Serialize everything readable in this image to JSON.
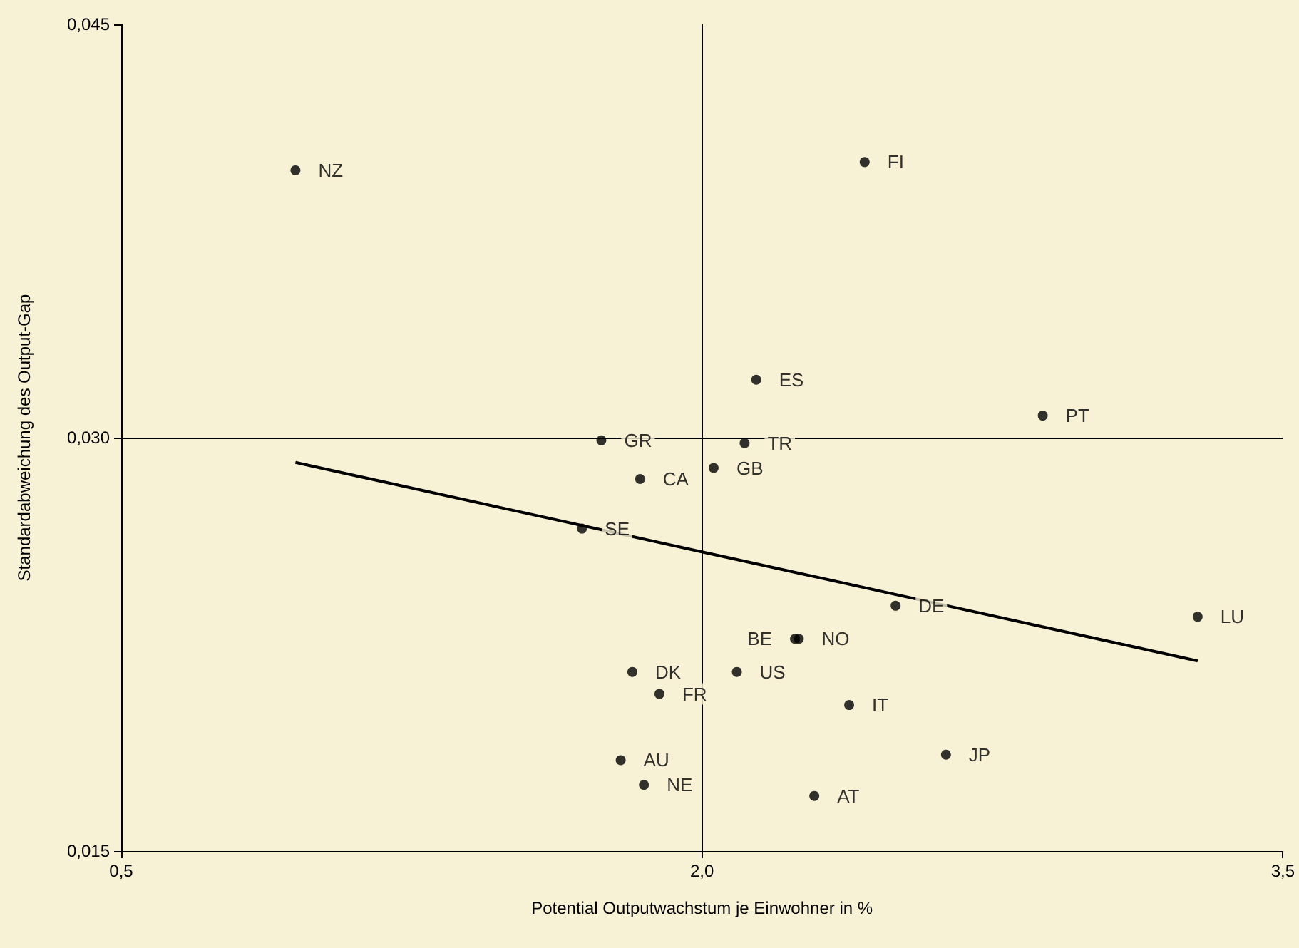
{
  "chart_data": {
    "type": "scatter",
    "xlabel": "Potential Outputwachstum je Einwohner in %",
    "ylabel": "Standardabweichung des Output-Gap",
    "xlim": [
      0.5,
      3.5
    ],
    "xticks": [
      {
        "value": 0.5,
        "label": "0,5"
      },
      {
        "value": 2.0,
        "label": "2,0"
      },
      {
        "value": 3.5,
        "label": "3,5"
      }
    ],
    "ylim": [
      0.015,
      0.045
    ],
    "yticks": [
      {
        "value": 0.015,
        "label": "0,015"
      },
      {
        "value": 0.03,
        "label": "0,030"
      },
      {
        "value": 0.045,
        "label": "0,045"
      }
    ],
    "grid": false,
    "marker": "circle",
    "series": [
      {
        "color": "#000000",
        "x": [
          0.95,
          2.42,
          2.14,
          2.88,
          1.74,
          2.11,
          2.03,
          1.84,
          1.69,
          2.5,
          3.28,
          2.24,
          2.25,
          1.82,
          2.09,
          1.89,
          2.38,
          2.63,
          1.79,
          1.85,
          2.29
        ],
        "values": [
          0.0397,
          0.04,
          0.0321,
          0.0308,
          0.0299,
          0.0298,
          0.0289,
          0.0285,
          0.0267,
          0.0239,
          0.0235,
          0.0227,
          0.0227,
          0.0215,
          0.0215,
          0.0207,
          0.0203,
          0.0185,
          0.0183,
          0.0174,
          0.017
        ]
      },
      {
        "type": "line",
        "color": "#000000",
        "marker": "none",
        "x": [
          0.95,
          3.28
        ],
        "values": [
          0.0291,
          0.0219
        ]
      }
    ],
    "ref_lines": [
      {
        "axis": "x",
        "value": 2.0,
        "color": "#000000"
      },
      {
        "axis": "y",
        "value": 0.03,
        "color": "#000000"
      }
    ],
    "annotations": [
      {
        "text": "NZ",
        "x": 0.95,
        "y": 0.0397
      },
      {
        "text": "FI",
        "x": 2.42,
        "y": 0.04
      },
      {
        "text": "ES",
        "x": 2.14,
        "y": 0.0321
      },
      {
        "text": "PT",
        "x": 2.88,
        "y": 0.0308
      },
      {
        "text": "GR",
        "x": 1.74,
        "y": 0.0299
      },
      {
        "text": "TR",
        "x": 2.11,
        "y": 0.0298
      },
      {
        "text": "GB",
        "x": 2.03,
        "y": 0.0289
      },
      {
        "text": "CA",
        "x": 1.84,
        "y": 0.0285
      },
      {
        "text": "SE",
        "x": 1.69,
        "y": 0.0267
      },
      {
        "text": "DE",
        "x": 2.5,
        "y": 0.0239
      },
      {
        "text": "LU",
        "x": 3.28,
        "y": 0.0235
      },
      {
        "text": "BE",
        "x": 2.24,
        "y": 0.0227
      },
      {
        "text": "NO",
        "x": 2.25,
        "y": 0.0227
      },
      {
        "text": "DK",
        "x": 1.82,
        "y": 0.0215
      },
      {
        "text": "US",
        "x": 2.09,
        "y": 0.0215
      },
      {
        "text": "FR",
        "x": 1.89,
        "y": 0.0207
      },
      {
        "text": "IT",
        "x": 2.38,
        "y": 0.0203
      },
      {
        "text": "JP",
        "x": 2.63,
        "y": 0.0185
      },
      {
        "text": "AU",
        "x": 1.79,
        "y": 0.0183
      },
      {
        "text": "NE",
        "x": 1.85,
        "y": 0.0174
      },
      {
        "text": "AT",
        "x": 2.29,
        "y": 0.017
      }
    ]
  }
}
